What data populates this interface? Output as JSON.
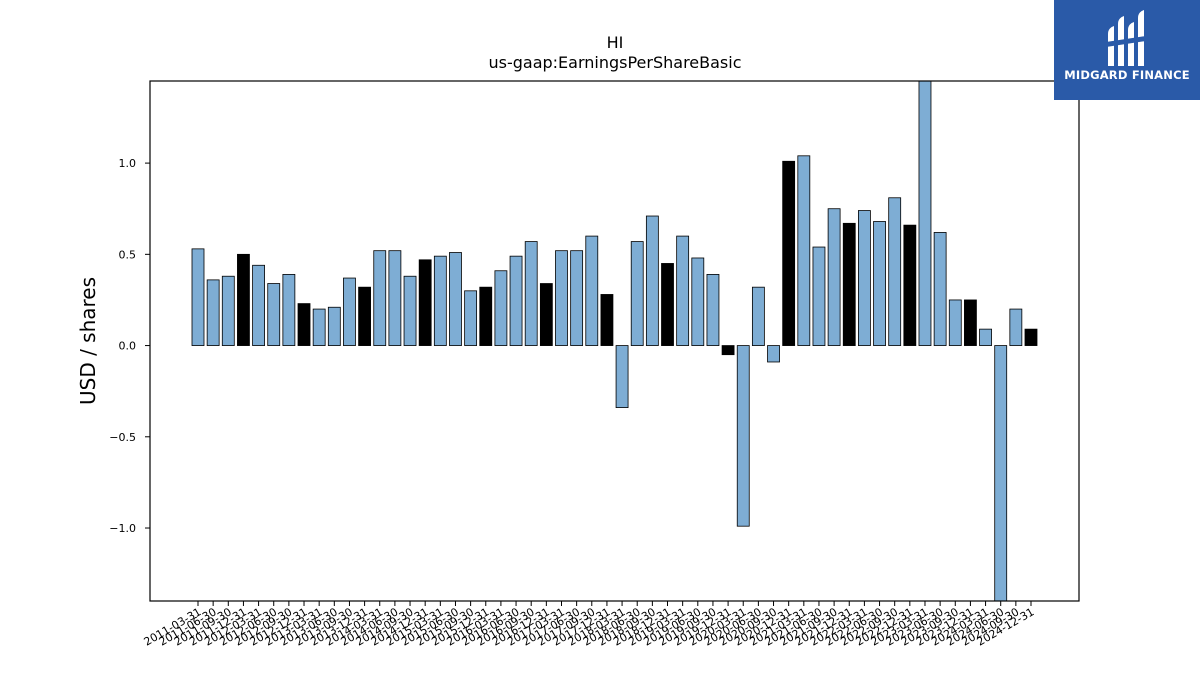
{
  "chart_data": {
    "type": "bar",
    "title": "HI",
    "subtitle": "us-gaap:EarningsPerShareBasic",
    "xlabel": "",
    "ylabel": "USD / shares",
    "ylim": [
      -1.4,
      1.45
    ],
    "yticks": [
      -1.0,
      -0.5,
      0.0,
      0.5,
      1.0
    ],
    "ytick_labels": [
      "−1.0",
      "−0.5",
      "0.0",
      "0.5",
      "1.0"
    ],
    "grid": false,
    "legend": "none",
    "colors": {
      "quarterly": "#7eadd4",
      "annual": "#000000",
      "edge": "#000000"
    },
    "categories": [
      "2011-03-31",
      "2011-06-30",
      "2011-09-30",
      "2011-12-31",
      "2012-03-31",
      "2012-06-30",
      "2012-09-30",
      "2012-12-31",
      "2013-03-31",
      "2013-06-30",
      "2013-09-30",
      "2013-12-31",
      "2014-03-31",
      "2014-06-30",
      "2014-09-30",
      "2014-12-31",
      "2015-03-31",
      "2015-06-30",
      "2015-09-30",
      "2015-12-31",
      "2016-03-31",
      "2016-06-30",
      "2016-09-30",
      "2016-12-31",
      "2017-03-31",
      "2017-06-30",
      "2017-09-30",
      "2017-12-31",
      "2018-03-31",
      "2018-06-30",
      "2018-09-30",
      "2018-12-31",
      "2019-03-31",
      "2019-06-30",
      "2019-09-30",
      "2019-12-31",
      "2020-03-31",
      "2020-06-30",
      "2020-09-30",
      "2020-12-31",
      "2021-03-31",
      "2021-06-30",
      "2021-09-30",
      "2021-12-31",
      "2022-03-31",
      "2022-06-30",
      "2022-09-30",
      "2022-12-31",
      "2023-03-31",
      "2023-06-30",
      "2023-09-30",
      "2023-12-31",
      "2024-03-31",
      "2024-06-30",
      "2024-09-30",
      "2024-12-31"
    ],
    "values": [
      0.53,
      0.36,
      0.38,
      0.5,
      0.44,
      0.34,
      0.39,
      0.23,
      0.2,
      0.21,
      0.37,
      0.32,
      0.52,
      0.52,
      0.38,
      0.47,
      0.49,
      0.51,
      0.3,
      0.32,
      0.41,
      0.49,
      0.57,
      0.34,
      0.52,
      0.52,
      0.6,
      0.28,
      -0.34,
      0.57,
      0.71,
      0.45,
      0.6,
      0.48,
      0.39,
      -0.05,
      -0.99,
      0.32,
      -0.09,
      1.01,
      1.04,
      0.54,
      0.75,
      0.67,
      0.74,
      0.68,
      0.81,
      0.66,
      1.45,
      0.62,
      0.25,
      0.25,
      0.09,
      -1.4,
      0.2,
      0.09
    ],
    "annual": [
      false,
      false,
      false,
      true,
      false,
      false,
      false,
      true,
      false,
      false,
      false,
      true,
      false,
      false,
      false,
      true,
      false,
      false,
      false,
      true,
      false,
      false,
      false,
      true,
      false,
      false,
      false,
      true,
      false,
      false,
      false,
      true,
      false,
      false,
      false,
      true,
      false,
      false,
      false,
      true,
      false,
      false,
      false,
      true,
      false,
      false,
      false,
      true,
      false,
      false,
      false,
      true,
      false,
      false,
      false,
      true
    ]
  },
  "logo": {
    "text": "MIDGARD FINANCE"
  }
}
